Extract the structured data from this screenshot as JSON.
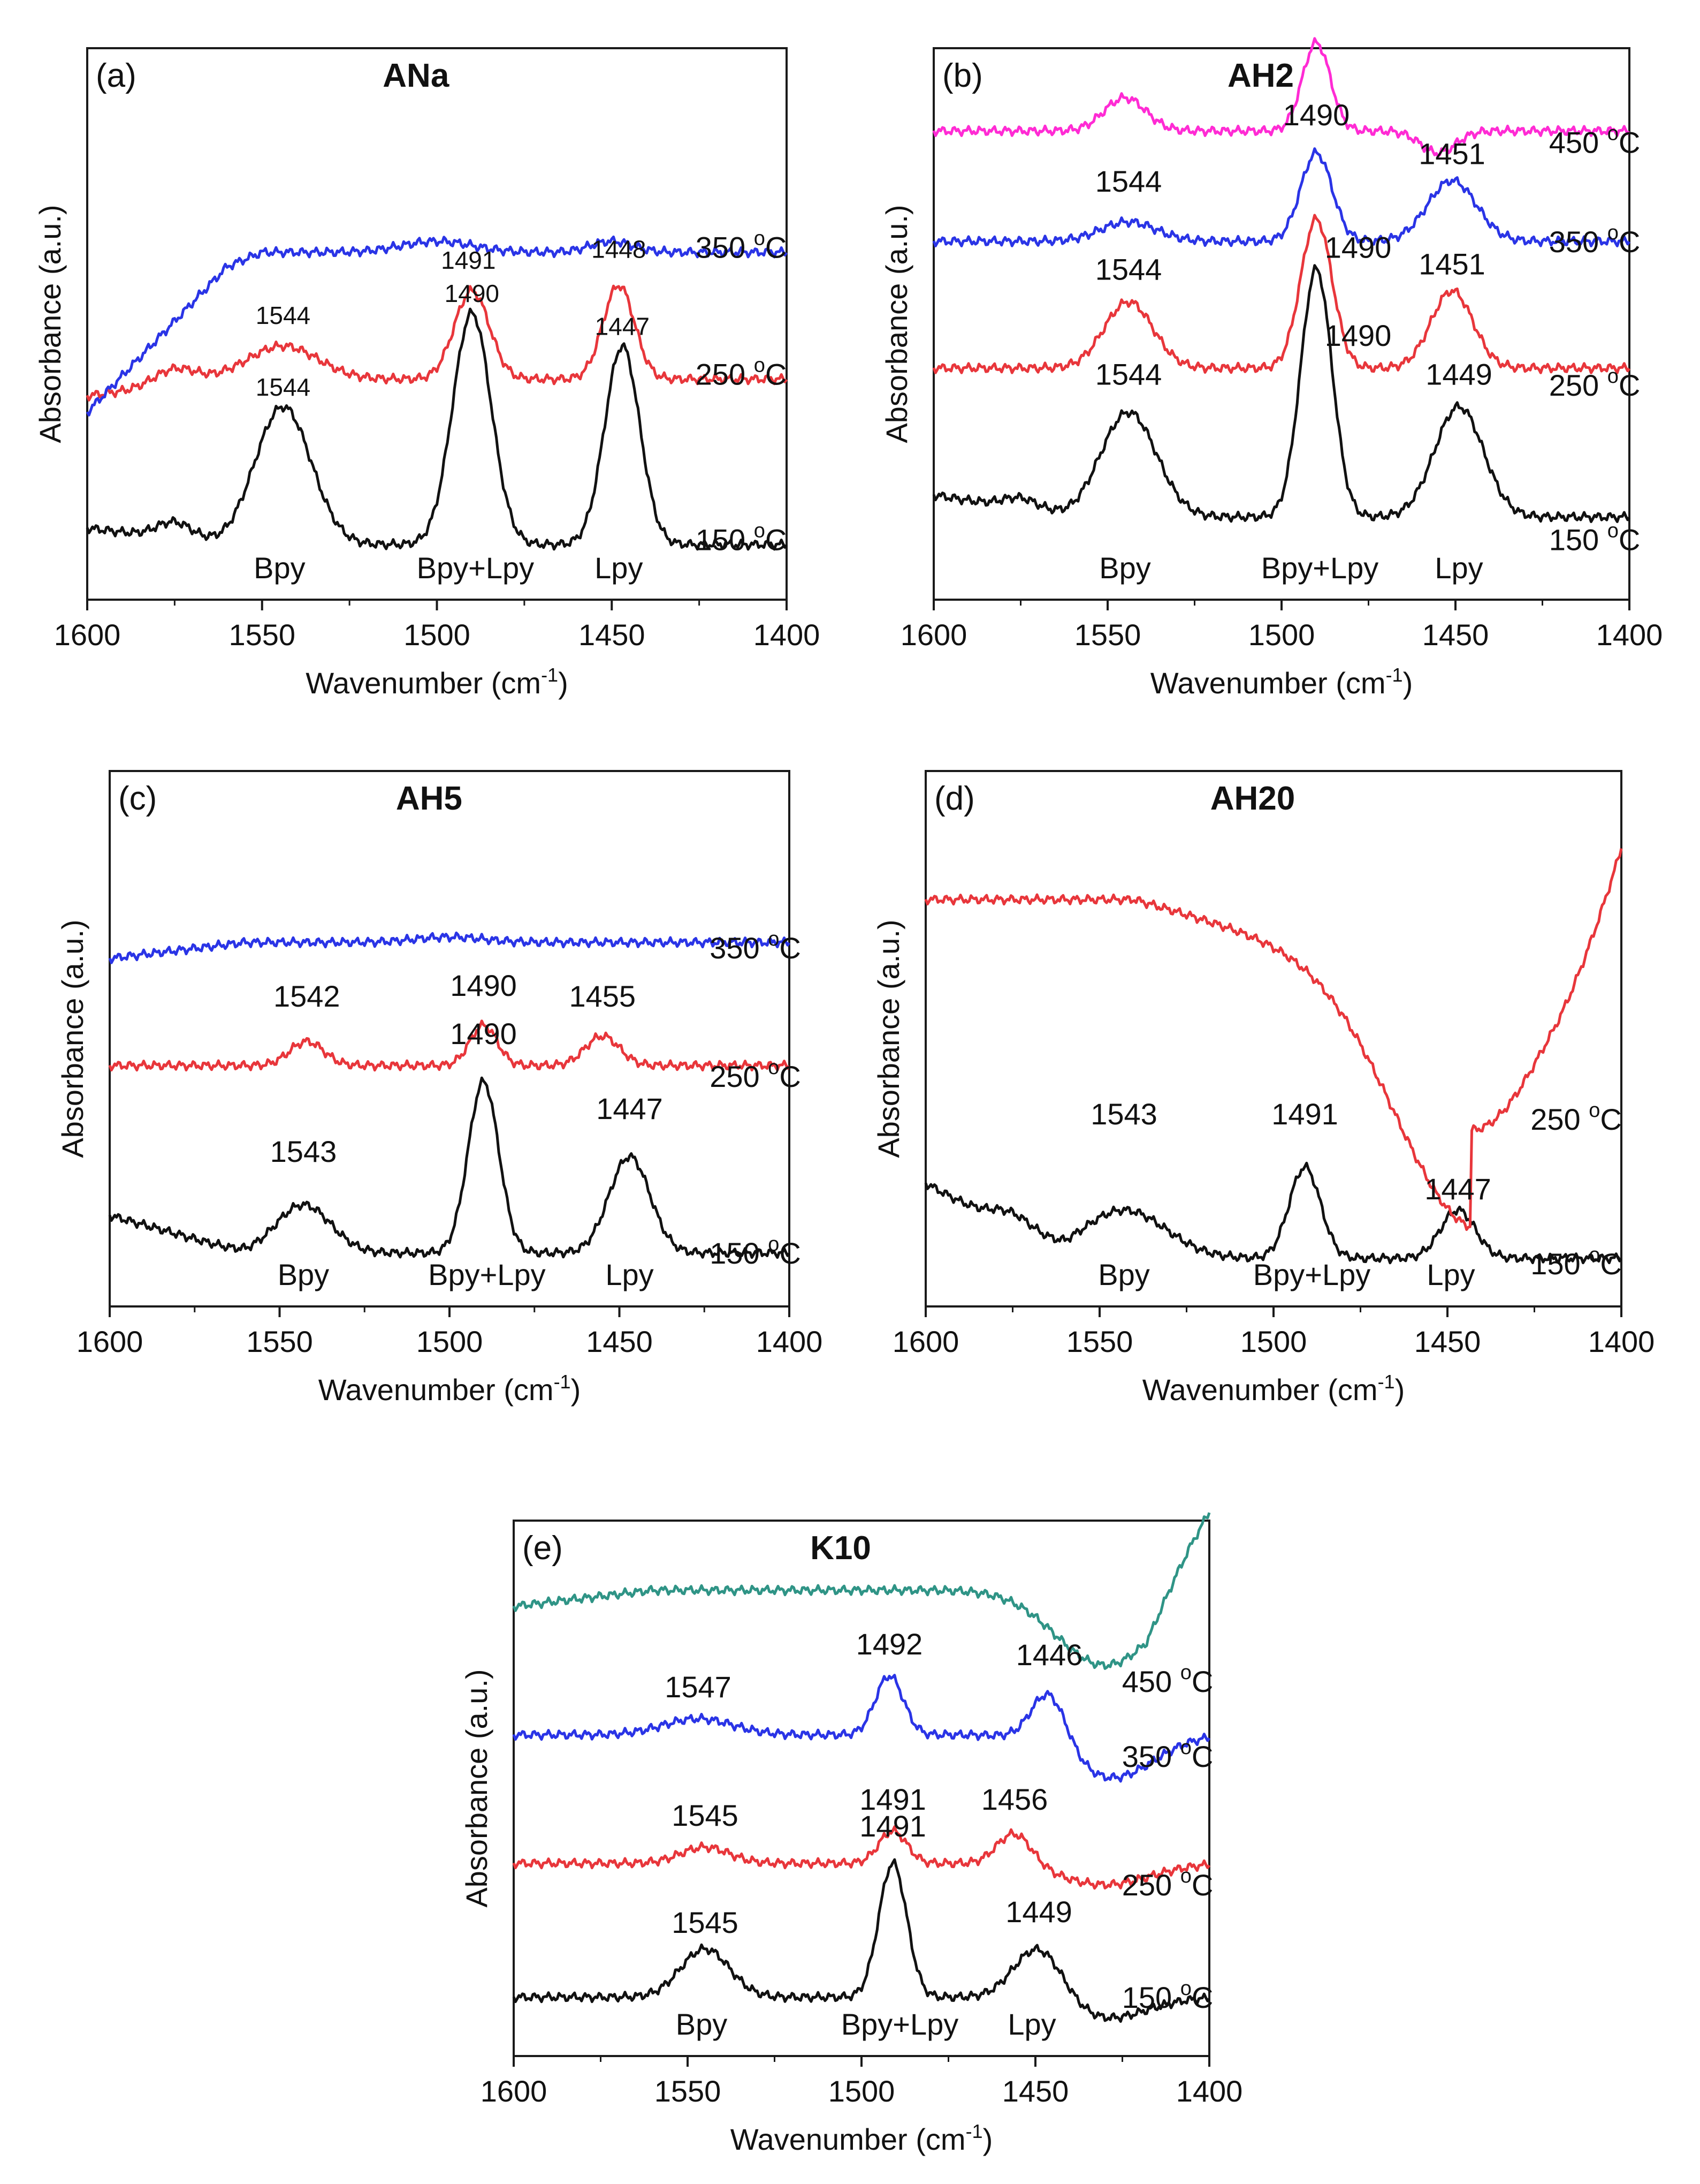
{
  "figure": {
    "description_x_unit": "cm-1"
  },
  "colors": {
    "black": "#111111",
    "red": "#e8363b",
    "blue": "#2a34e6",
    "magenta": "#ff2bd4",
    "teal": "#2f9486",
    "frame": "#1a1a1a"
  },
  "chart_data": [
    {
      "id": "a",
      "type": "line",
      "panel_label": "(a)",
      "title": "ANa",
      "xlabel": "Wavenumber (cm",
      "xlabel_sup": "-1",
      "xlabel_end": ")",
      "ylabel": "Absorbance (a.u.)",
      "xlim": [
        1600,
        1400
      ],
      "xticks": [
        "1600",
        "1550",
        "1500",
        "1450",
        "1400"
      ],
      "ylim": [
        0,
        10
      ],
      "series": [
        {
          "name": "150 °C",
          "color_key": "black",
          "base": 1.0,
          "slope": 0.0,
          "front": 0.3,
          "peaks": [
            [
              1575,
              0.3,
              5
            ],
            [
              1544,
              2.5,
              8
            ],
            [
              1490,
              4.2,
              5.5
            ],
            [
              1447,
              3.6,
              5
            ]
          ],
          "temp_label": "150 °C",
          "temp_value": "150",
          "temp_unit": "C",
          "temp_pos": [
            1413,
            0.9
          ]
        },
        {
          "name": "250 °C",
          "color_key": "red",
          "base": 4.0,
          "slope": 0.0,
          "front": -0.3,
          "peaks": [
            [
              1575,
              0.3,
              6
            ],
            [
              1544,
              0.6,
              10
            ],
            [
              1490,
              1.6,
              5
            ],
            [
              1448,
              1.7,
              4.5
            ]
          ],
          "temp_label": "250 °C",
          "temp_value": "250",
          "temp_unit": "C",
          "temp_pos": [
            1413,
            3.9
          ]
        },
        {
          "name": "350 °C",
          "color_key": "blue",
          "base": 6.3,
          "slope": 0.0,
          "front": -1.6,
          "peaks": [
            [
              1500,
              0.2,
              10
            ],
            [
              1450,
              0.2,
              6
            ]
          ],
          "temp_label": "350 °C",
          "temp_value": "350",
          "temp_unit": "C",
          "temp_pos": [
            1413,
            6.2
          ]
        }
      ],
      "peak_labels": [
        {
          "text": "1544",
          "x": 1544,
          "y": 5.0,
          "small": true
        },
        {
          "text": "1491",
          "x": 1491,
          "y": 6.0,
          "small": true
        },
        {
          "text": "1448",
          "x": 1448,
          "y": 6.2,
          "small": true
        },
        {
          "text": "1544",
          "x": 1544,
          "y": 3.7,
          "small": true
        },
        {
          "text": "1490",
          "x": 1490,
          "y": 5.4,
          "small": true
        },
        {
          "text": "1447",
          "x": 1447,
          "y": 4.8,
          "small": true
        }
      ],
      "band_labels": [
        {
          "text": "Bpy",
          "x": 1545
        },
        {
          "text": "Bpy+Lpy",
          "x": 1489
        },
        {
          "text": "Lpy",
          "x": 1448
        }
      ]
    },
    {
      "id": "b",
      "type": "line",
      "panel_label": "(b)",
      "title": "AH2",
      "xlabel": "Wavenumber (cm",
      "xlabel_sup": "-1",
      "xlabel_end": ")",
      "ylabel": "Absorbance (a.u.)",
      "xlim": [
        1600,
        1400
      ],
      "xticks": [
        "1600",
        "1550",
        "1500",
        "1450",
        "1400"
      ],
      "ylim": [
        0,
        10
      ],
      "series": [
        {
          "name": "150 °C",
          "color_key": "black",
          "base": 1.5,
          "slope": 0.0,
          "front": 0.4,
          "peaks": [
            [
              1575,
              0.2,
              5
            ],
            [
              1544,
              1.9,
              8
            ],
            [
              1490,
              4.5,
              4.5
            ],
            [
              1449,
              2.0,
              7
            ]
          ],
          "temp_label": "150 °C",
          "temp_value": "150",
          "temp_unit": "C",
          "temp_pos": [
            1410,
            0.9
          ]
        },
        {
          "name": "250 °C",
          "color_key": "red",
          "base": 4.2,
          "slope": 0.0,
          "front": 0.0,
          "peaks": [
            [
              1544,
              1.2,
              7
            ],
            [
              1490,
              2.7,
              4.5
            ],
            [
              1451,
              1.4,
              6
            ]
          ],
          "temp_label": "250 °C",
          "temp_value": "250",
          "temp_unit": "C",
          "temp_pos": [
            1410,
            3.7
          ]
        },
        {
          "name": "350 °C",
          "color_key": "blue",
          "base": 6.5,
          "slope": 0.0,
          "front": 0.0,
          "peaks": [
            [
              1544,
              0.35,
              8
            ],
            [
              1490,
              1.6,
              4.5
            ],
            [
              1451,
              1.1,
              7
            ]
          ],
          "temp_label": "350 °C",
          "temp_value": "350",
          "temp_unit": "C",
          "temp_pos": [
            1410,
            6.3
          ]
        },
        {
          "name": "450 °C",
          "color_key": "magenta",
          "base": 8.5,
          "slope": 0.0,
          "front": 0.0,
          "peaks": [
            [
              1545,
              0.6,
              6
            ],
            [
              1490,
              1.6,
              4
            ],
            [
              1455,
              -0.4,
              5
            ]
          ],
          "temp_label": "450 °C",
          "temp_value": "450",
          "temp_unit": "C",
          "temp_pos": [
            1410,
            8.1
          ]
        }
      ],
      "peak_labels": [
        {
          "text": "1544",
          "x": 1544,
          "y": 7.4,
          "small": false
        },
        {
          "text": "1490",
          "x": 1490,
          "y": 8.6,
          "small": false
        },
        {
          "text": "1451",
          "x": 1451,
          "y": 7.9,
          "small": false
        },
        {
          "text": "1544",
          "x": 1544,
          "y": 5.8,
          "small": false
        },
        {
          "text": "1490",
          "x": 1478,
          "y": 6.2,
          "small": false
        },
        {
          "text": "1451",
          "x": 1451,
          "y": 5.9,
          "small": false
        },
        {
          "text": "1544",
          "x": 1544,
          "y": 3.9,
          "small": false
        },
        {
          "text": "1490",
          "x": 1478,
          "y": 4.6,
          "small": false
        },
        {
          "text": "1449",
          "x": 1449,
          "y": 3.9,
          "small": false
        }
      ],
      "band_labels": [
        {
          "text": "Bpy",
          "x": 1545
        },
        {
          "text": "Bpy+Lpy",
          "x": 1489
        },
        {
          "text": "Lpy",
          "x": 1449
        }
      ]
    },
    {
      "id": "c",
      "type": "line",
      "panel_label": "(c)",
      "title": "AH5",
      "xlabel": "Wavenumber (cm",
      "xlabel_sup": "-1",
      "xlabel_end": ")",
      "ylabel": "Absorbance (a.u.)",
      "xlim": [
        1600,
        1400
      ],
      "xticks": [
        "1600",
        "1550",
        "1500",
        "1450",
        "1400"
      ],
      "ylim": [
        0,
        10
      ],
      "series": [
        {
          "name": "150 °C",
          "color_key": "black",
          "base": 1.0,
          "slope": 0.0,
          "front": 0.7,
          "peaks": [
            [
              1543,
              0.9,
              8
            ],
            [
              1490,
              3.2,
              4.5
            ],
            [
              1447,
              1.8,
              6
            ]
          ],
          "temp_label": "150 °C",
          "temp_value": "150",
          "temp_unit": "C",
          "temp_pos": [
            1410,
            0.8
          ]
        },
        {
          "name": "250 °C",
          "color_key": "red",
          "base": 4.5,
          "slope": 0.0,
          "front": 0.0,
          "peaks": [
            [
              1542,
              0.45,
              5
            ],
            [
              1490,
              0.75,
              4
            ],
            [
              1455,
              0.55,
              5
            ]
          ],
          "temp_label": "250 °C",
          "temp_value": "250",
          "temp_unit": "C",
          "temp_pos": [
            1410,
            4.1
          ]
        },
        {
          "name": "350 °C",
          "color_key": "blue",
          "base": 6.8,
          "slope": 0.0,
          "front": -0.3,
          "peaks": [
            [
              1500,
              0.1,
              10
            ]
          ],
          "temp_label": "350 °C",
          "temp_value": "350",
          "temp_unit": "C",
          "temp_pos": [
            1410,
            6.5
          ]
        }
      ],
      "peak_labels": [
        {
          "text": "1542",
          "x": 1542,
          "y": 5.6,
          "small": false
        },
        {
          "text": "1490",
          "x": 1490,
          "y": 5.8,
          "small": false
        },
        {
          "text": "1455",
          "x": 1455,
          "y": 5.6,
          "small": false
        },
        {
          "text": "1543",
          "x": 1543,
          "y": 2.7,
          "small": false
        },
        {
          "text": "1490",
          "x": 1490,
          "y": 4.9,
          "small": false
        },
        {
          "text": "1447",
          "x": 1447,
          "y": 3.5,
          "small": false
        }
      ],
      "band_labels": [
        {
          "text": "Bpy",
          "x": 1543
        },
        {
          "text": "Bpy+Lpy",
          "x": 1489
        },
        {
          "text": "Lpy",
          "x": 1447
        }
      ]
    },
    {
      "id": "d",
      "type": "line",
      "panel_label": "(d)",
      "title": "AH20",
      "xlabel": "Wavenumber (cm",
      "xlabel_sup": "-1",
      "xlabel_end": ")",
      "ylabel": "Absorbance (a.u.)",
      "xlim": [
        1600,
        1400
      ],
      "xticks": [
        "1600",
        "1550",
        "1500",
        "1450",
        "1400"
      ],
      "ylim": [
        0,
        10
      ],
      "series": [
        {
          "name": "150 °C",
          "color_key": "black",
          "base": 0.9,
          "slope": 0.0,
          "front": 1.4,
          "peaks": [
            [
              1575,
              0.3,
              6
            ],
            [
              1543,
              0.9,
              12
            ],
            [
              1491,
              1.7,
              4.5
            ],
            [
              1447,
              0.9,
              5
            ]
          ],
          "temp_label": "150 °C",
          "temp_value": "150",
          "temp_unit": "C",
          "temp_pos": [
            1413,
            0.6
          ]
        },
        {
          "name": "250 °C",
          "color_key": "red",
          "base": 7.6,
          "slope": 0.0,
          "front": 0.0,
          "peaks": [
            [
              1443,
              -4.3,
              22
            ]
          ],
          "temp_label": "250 °C",
          "temp_value": "250",
          "temp_unit": "C",
          "temp_pos": [
            1413,
            3.3
          ]
        }
      ],
      "peak_labels": [
        {
          "text": "1543",
          "x": 1543,
          "y": 3.4,
          "small": false
        },
        {
          "text": "1491",
          "x": 1491,
          "y": 3.4,
          "small": false
        },
        {
          "text": "1447",
          "x": 1447,
          "y": 2.0,
          "small": false
        }
      ],
      "band_labels": [
        {
          "text": "Bpy",
          "x": 1543
        },
        {
          "text": "Bpy+Lpy",
          "x": 1489
        },
        {
          "text": "Lpy",
          "x": 1449
        }
      ]
    },
    {
      "id": "e",
      "type": "line",
      "panel_label": "(e)",
      "title": "K10",
      "xlabel": "Wavenumber (cm",
      "xlabel_sup": "-1",
      "xlabel_end": ")",
      "ylabel": "Absorbance (a.u.)",
      "xlim": [
        1600,
        1400
      ],
      "xticks": [
        "1600",
        "1550",
        "1500",
        "1450",
        "1400"
      ],
      "ylim": [
        0,
        10
      ],
      "series": [
        {
          "name": "150°C",
          "color_key": "black",
          "base": 1.1,
          "slope": 0.0,
          "front": 0.0,
          "peaks": [
            [
              1545,
              0.9,
              7
            ],
            [
              1491,
              2.5,
              4
            ],
            [
              1449,
              1.0,
              7
            ],
            [
              1430,
              -0.4,
              12
            ]
          ],
          "temp_label": "150°C",
          "temp_value": "150",
          "temp_unit": "C",
          "temp_pos": [
            1412,
            0.9
          ]
        },
        {
          "name": "250°C",
          "color_key": "red",
          "base": 3.6,
          "slope": 0.0,
          "front": 0.0,
          "peaks": [
            [
              1545,
              0.3,
              7
            ],
            [
              1491,
              0.6,
              4
            ],
            [
              1456,
              0.6,
              5
            ],
            [
              1430,
              -0.4,
              13
            ]
          ],
          "temp_label": "250°C",
          "temp_value": "250",
          "temp_unit": "C",
          "temp_pos": [
            1412,
            3.0
          ]
        },
        {
          "name": "350°C",
          "color_key": "blue",
          "base": 6.0,
          "slope": 0.0,
          "front": 0.0,
          "peaks": [
            [
              1547,
              0.3,
              10
            ],
            [
              1492,
              1.1,
              4
            ],
            [
              1446,
              1.0,
              5
            ],
            [
              1428,
              -0.8,
              12
            ]
          ],
          "temp_label": "350°C",
          "temp_value": "350",
          "temp_unit": "C",
          "temp_pos": [
            1412,
            5.4
          ]
        },
        {
          "name": "450°C",
          "color_key": "teal",
          "base": 8.7,
          "slope": 0.0,
          "front": -0.3,
          "peaks": [
            [
              1430,
              -1.4,
              14
            ]
          ],
          "temp_label": "450°C",
          "temp_value": "450",
          "temp_unit": "C",
          "temp_pos": [
            1412,
            6.8
          ]
        }
      ],
      "peak_labels": [
        {
          "text": "1547",
          "x": 1547,
          "y": 6.7,
          "small": false
        },
        {
          "text": "1492",
          "x": 1492,
          "y": 7.5,
          "small": false
        },
        {
          "text": "1446",
          "x": 1446,
          "y": 7.3,
          "small": false
        },
        {
          "text": "1545",
          "x": 1545,
          "y": 4.3,
          "small": false
        },
        {
          "text": "1491",
          "x": 1491,
          "y": 4.6,
          "small": false
        },
        {
          "text": "1456",
          "x": 1456,
          "y": 4.6,
          "small": false
        },
        {
          "text": "1545",
          "x": 1545,
          "y": 2.3,
          "small": false
        },
        {
          "text": "1491",
          "x": 1491,
          "y": 4.1,
          "small": false
        },
        {
          "text": "1449",
          "x": 1449,
          "y": 2.5,
          "small": false
        }
      ],
      "band_labels": [
        {
          "text": "Bpy",
          "x": 1546
        },
        {
          "text": "Bpy+Lpy",
          "x": 1489
        },
        {
          "text": "Lpy",
          "x": 1451
        }
      ]
    }
  ]
}
